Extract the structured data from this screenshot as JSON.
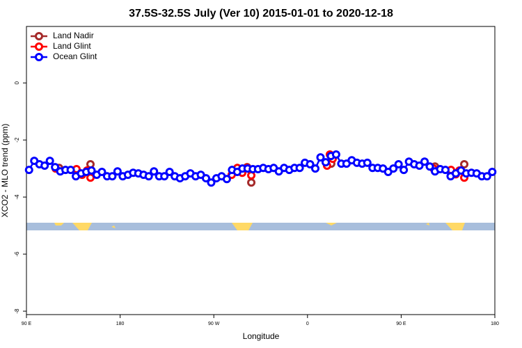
{
  "chart_data": {
    "type": "line",
    "title": "37.5S-32.5S July (Ver 10)   2015-01-01 to 2020-12-18",
    "xlabel": "Longitude",
    "ylabel": "XCO2 - MLO trend (ppm)",
    "xlim": [
      90,
      540
    ],
    "ylim": [
      -8.12,
      1.98
    ],
    "xticks": [
      {
        "value": 90,
        "label": "90 E"
      },
      180,
      {
        "value": 270,
        "label": "90 W"
      },
      {
        "value": 360,
        "label": "0"
      },
      {
        "value": 450,
        "label": "90 E"
      },
      {
        "value": 540,
        "label": "180"
      }
    ],
    "yticks": [
      0,
      -2,
      -4,
      -6,
      -8
    ],
    "legend": "top-left",
    "series": [
      {
        "name": "Land Nadir",
        "color": "#a52a2a",
        "x": [
          121.4,
          null,
          151.5,
          null,
          302.0,
          306.0,
          null,
          382.8,
          null,
          482.5,
          null,
          510.6
        ],
        "values": [
          -2.98,
          null,
          -2.85,
          null,
          -2.95,
          -3.49,
          null,
          -2.83,
          null,
          -2.93,
          null,
          -2.85
        ]
      },
      {
        "name": "Land Glint",
        "color": "#ff0000",
        "x": [
          118.1,
          null,
          138.1,
          143.5,
          148.2,
          151.5,
          null,
          287.2,
          292.6,
          297.3,
          302.0,
          306.0,
          null,
          378.8,
          381.5,
          384.2,
          null,
          481.1,
          null,
          497.9,
          502.5,
          505.9,
          510.6
        ],
        "values": [
          -3.0,
          null,
          -3.02,
          -3.22,
          -3.07,
          -3.32,
          null,
          -3.22,
          -2.98,
          -3.15,
          -2.98,
          -3.24,
          null,
          -2.9,
          -2.51,
          -2.66,
          null,
          -3.0,
          null,
          -3.05,
          -3.2,
          -3.07,
          -3.32
        ]
      },
      {
        "name": "Ocean Glint",
        "color": "#0000ff",
        "x": [
          92.5,
          97.5,
          102.5,
          107.5,
          112.5,
          117.5,
          122.5,
          127.5,
          132.5,
          137.5,
          142.5,
          147.5,
          152.5,
          157.5,
          162.5,
          167.5,
          172.5,
          177.5,
          182.5,
          187.5,
          192.5,
          197.5,
          202.5,
          207.5,
          212.5,
          217.5,
          222.5,
          227.5,
          232.5,
          237.5,
          242.5,
          247.5,
          252.5,
          257.5,
          262.5,
          267.5,
          272.5,
          277.5,
          282.5,
          287.5,
          292.5,
          297.5,
          302.5,
          307.5,
          312.5,
          317.5,
          322.5,
          327.5,
          332.5,
          337.5,
          342.5,
          347.5,
          352.5,
          357.5,
          362.5,
          367.5,
          372.5,
          377.5,
          382.5,
          387.5,
          392.5,
          397.5,
          402.5,
          407.5,
          412.5,
          417.5,
          422.5,
          427.5,
          432.5,
          437.5,
          442.5,
          447.5,
          452.5,
          457.5,
          462.5,
          467.5,
          472.5,
          477.5,
          482.5,
          487.5,
          492.5,
          497.5,
          502.5,
          507.5,
          512.5,
          517.5,
          522.5,
          527.5,
          532.5,
          537.5
        ],
        "values": [
          -3.05,
          -2.73,
          -2.85,
          -2.9,
          -2.73,
          -2.95,
          -3.1,
          -3.05,
          -3.05,
          -3.27,
          -3.17,
          -3.12,
          -3.07,
          -3.22,
          -3.12,
          -3.27,
          -3.27,
          -3.1,
          -3.27,
          -3.22,
          -3.15,
          -3.17,
          -3.22,
          -3.27,
          -3.1,
          -3.27,
          -3.27,
          -3.12,
          -3.27,
          -3.34,
          -3.27,
          -3.17,
          -3.27,
          -3.22,
          -3.34,
          -3.49,
          -3.34,
          -3.27,
          -3.37,
          -3.05,
          -3.12,
          -3.0,
          -3.0,
          -3.02,
          -3.02,
          -2.98,
          -3.02,
          -2.98,
          -3.1,
          -2.98,
          -3.05,
          -2.98,
          -2.98,
          -2.8,
          -2.85,
          -3.0,
          -2.61,
          -2.78,
          -2.56,
          -2.51,
          -2.83,
          -2.83,
          -2.71,
          -2.8,
          -2.83,
          -2.8,
          -2.98,
          -2.98,
          -3.0,
          -3.12,
          -3.0,
          -2.85,
          -3.05,
          -2.76,
          -2.85,
          -2.9,
          -2.76,
          -2.93,
          -3.1,
          -3.02,
          -3.05,
          -3.27,
          -3.17,
          -3.07,
          -3.17,
          -3.15,
          -3.17,
          -3.27,
          -3.27,
          -3.12
        ]
      }
    ]
  }
}
